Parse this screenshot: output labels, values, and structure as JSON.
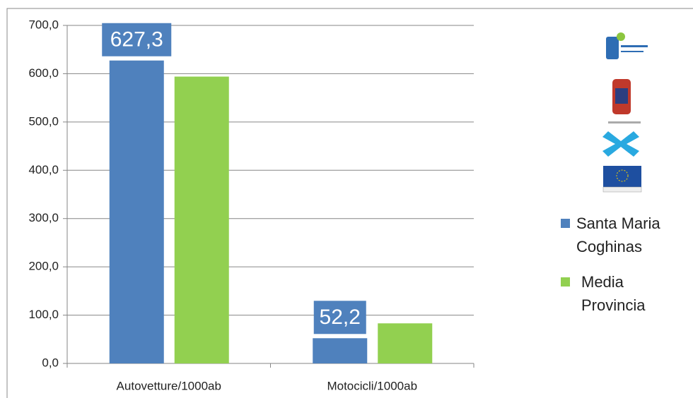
{
  "chart_data": {
    "type": "bar",
    "categories": [
      "Autovetture/1000ab",
      "Motocicli/1000ab"
    ],
    "series": [
      {
        "name": "Santa Maria Coghinas",
        "color": "#4f81bd",
        "values": [
          627.3,
          52.2
        ],
        "value_labels": [
          "627,3",
          "52,2"
        ]
      },
      {
        "name": "Media Provincia",
        "color": "#92d050",
        "values": [
          594,
          83
        ]
      }
    ],
    "ylim": [
      0,
      700
    ],
    "yticks": [
      {
        "value": 0,
        "label": "0,0"
      },
      {
        "value": 100,
        "label": "100,0"
      },
      {
        "value": 200,
        "label": "200,0"
      },
      {
        "value": 300,
        "label": "300,0"
      },
      {
        "value": 400,
        "label": "400,0"
      },
      {
        "value": 500,
        "label": "500,0"
      },
      {
        "value": 600,
        "label": "600,0"
      },
      {
        "value": 700,
        "label": "700,0"
      }
    ],
    "grid": true,
    "legend": "right"
  }
}
